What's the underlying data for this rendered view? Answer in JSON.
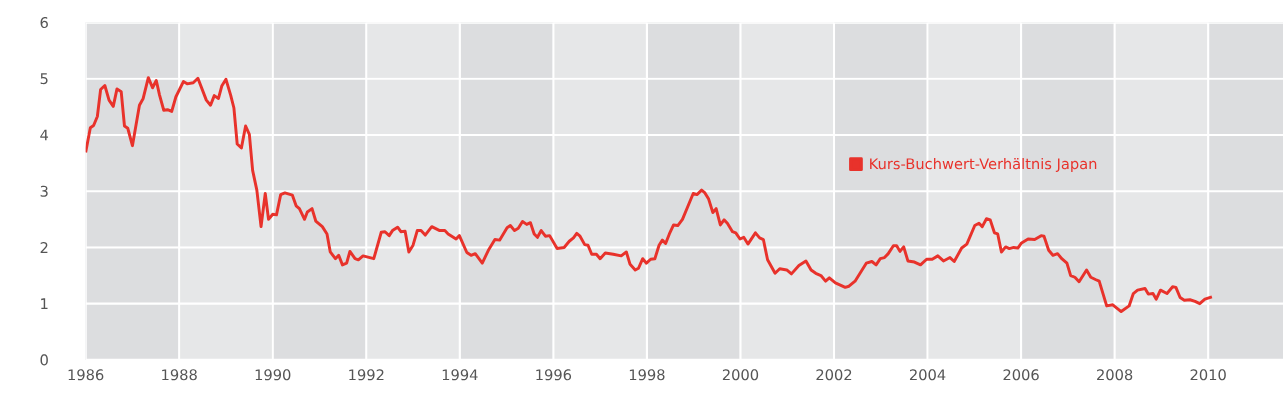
{
  "chart_data": {
    "type": "line",
    "x": [
      1986.0,
      1986.1,
      1986.17,
      1986.25,
      1986.32,
      1986.41,
      1986.5,
      1986.59,
      1986.67,
      1986.76,
      1986.83,
      1986.9,
      1987.0,
      1987.15,
      1987.23,
      1987.34,
      1987.43,
      1987.51,
      1987.58,
      1987.67,
      1987.75,
      1987.84,
      1987.93,
      1988.09,
      1988.17,
      1988.3,
      1988.4,
      1988.58,
      1988.67,
      1988.75,
      1988.84,
      1988.91,
      1989.0,
      1989.1,
      1989.17,
      1989.24,
      1989.33,
      1989.42,
      1989.5,
      1989.57,
      1989.66,
      1989.75,
      1989.84,
      1989.91,
      1990.0,
      1990.08,
      1990.17,
      1990.26,
      1990.42,
      1990.5,
      1990.57,
      1990.68,
      1990.74,
      1990.84,
      1990.92,
      1991.06,
      1991.16,
      1991.23,
      1991.34,
      1991.41,
      1991.49,
      1991.58,
      1991.65,
      1991.76,
      1991.83,
      1991.93,
      1992.16,
      1992.32,
      1992.4,
      1992.49,
      1992.56,
      1992.67,
      1992.74,
      1992.83,
      1992.91,
      1993.0,
      1993.09,
      1993.17,
      1993.26,
      1993.4,
      1993.57,
      1993.68,
      1993.75,
      1993.92,
      1993.99,
      1994.15,
      1994.24,
      1994.33,
      1994.48,
      1994.61,
      1994.75,
      1994.85,
      1995.01,
      1995.08,
      1995.17,
      1995.25,
      1995.34,
      1995.43,
      1995.51,
      1995.59,
      1995.66,
      1995.74,
      1995.83,
      1995.92,
      1996.08,
      1996.23,
      1996.34,
      1996.43,
      1996.5,
      1996.57,
      1996.67,
      1996.74,
      1996.82,
      1996.92,
      1997.0,
      1997.11,
      1997.28,
      1997.45,
      1997.56,
      1997.64,
      1997.75,
      1997.82,
      1997.91,
      1997.99,
      1998.08,
      1998.17,
      1998.26,
      1998.33,
      1998.4,
      1998.48,
      1998.57,
      1998.66,
      1998.76,
      1998.87,
      1998.99,
      1999.07,
      1999.17,
      1999.24,
      1999.32,
      1999.41,
      1999.48,
      1999.57,
      1999.65,
      1999.72,
      1999.83,
      1999.9,
      1999.99,
      2000.07,
      2000.16,
      2000.32,
      2000.41,
      2000.49,
      2000.58,
      2000.74,
      2000.84,
      2000.99,
      2001.09,
      2001.25,
      2001.4,
      2001.51,
      2001.61,
      2001.72,
      2001.82,
      2001.9,
      2002.03,
      2002.24,
      2002.32,
      2002.45,
      2002.69,
      2002.81,
      2002.9,
      2002.99,
      2003.08,
      2003.16,
      2003.27,
      2003.34,
      2003.41,
      2003.49,
      2003.58,
      2003.72,
      2003.85,
      2003.98,
      2004.1,
      2004.22,
      2004.34,
      2004.48,
      2004.57,
      2004.73,
      2004.84,
      2005.01,
      2005.1,
      2005.17,
      2005.26,
      2005.34,
      2005.43,
      2005.5,
      2005.58,
      2005.67,
      2005.75,
      2005.84,
      2005.93,
      2006.01,
      2006.15,
      2006.29,
      2006.43,
      2006.49,
      2006.59,
      2006.68,
      2006.78,
      2006.87,
      2006.98,
      2007.06,
      2007.15,
      2007.24,
      2007.4,
      2007.49,
      2007.59,
      2007.67,
      2007.83,
      2007.96,
      2008.14,
      2008.31,
      2008.4,
      2008.49,
      2008.65,
      2008.72,
      2008.82,
      2008.89,
      2008.98,
      2009.12,
      2009.24,
      2009.31,
      2009.4,
      2009.49,
      2009.61,
      2009.72,
      2009.82,
      2009.93,
      2010.08
    ],
    "series": [
      {
        "name": "Kurs-Buchwert-Verhältnis Japan",
        "color": "#e8322b",
        "values": [
          3.69,
          4.13,
          4.17,
          4.33,
          4.81,
          4.88,
          4.62,
          4.51,
          4.82,
          4.77,
          4.16,
          4.12,
          3.81,
          4.53,
          4.65,
          5.02,
          4.84,
          4.97,
          4.71,
          4.44,
          4.45,
          4.42,
          4.68,
          4.95,
          4.91,
          4.93,
          5.01,
          4.62,
          4.53,
          4.7,
          4.65,
          4.87,
          4.99,
          4.71,
          4.48,
          3.84,
          3.77,
          4.16,
          4.01,
          3.37,
          3.02,
          2.37,
          2.96,
          2.5,
          2.59,
          2.58,
          2.94,
          2.97,
          2.93,
          2.74,
          2.69,
          2.5,
          2.63,
          2.69,
          2.47,
          2.37,
          2.24,
          1.92,
          1.8,
          1.86,
          1.69,
          1.72,
          1.93,
          1.8,
          1.78,
          1.85,
          1.8,
          2.27,
          2.28,
          2.21,
          2.3,
          2.36,
          2.28,
          2.29,
          1.92,
          2.04,
          2.3,
          2.3,
          2.22,
          2.37,
          2.3,
          2.3,
          2.24,
          2.15,
          2.21,
          1.91,
          1.86,
          1.89,
          1.72,
          1.95,
          2.14,
          2.13,
          2.35,
          2.39,
          2.3,
          2.34,
          2.46,
          2.41,
          2.44,
          2.24,
          2.18,
          2.3,
          2.2,
          2.21,
          1.98,
          2.0,
          2.11,
          2.17,
          2.25,
          2.2,
          2.05,
          2.04,
          1.88,
          1.88,
          1.8,
          1.9,
          1.88,
          1.85,
          1.92,
          1.7,
          1.6,
          1.63,
          1.8,
          1.72,
          1.79,
          1.8,
          2.04,
          2.13,
          2.07,
          2.24,
          2.4,
          2.39,
          2.5,
          2.72,
          2.96,
          2.94,
          3.02,
          2.97,
          2.86,
          2.62,
          2.69,
          2.4,
          2.49,
          2.43,
          2.28,
          2.26,
          2.15,
          2.18,
          2.06,
          2.26,
          2.17,
          2.14,
          1.78,
          1.54,
          1.62,
          1.6,
          1.53,
          1.68,
          1.76,
          1.6,
          1.54,
          1.5,
          1.4,
          1.46,
          1.37,
          1.29,
          1.31,
          1.4,
          1.72,
          1.75,
          1.69,
          1.8,
          1.82,
          1.89,
          2.03,
          2.03,
          1.93,
          2.01,
          1.76,
          1.74,
          1.69,
          1.79,
          1.79,
          1.85,
          1.76,
          1.82,
          1.75,
          1.99,
          2.06,
          2.39,
          2.43,
          2.37,
          2.51,
          2.49,
          2.26,
          2.24,
          1.92,
          2.01,
          1.98,
          2.0,
          1.99,
          2.08,
          2.15,
          2.14,
          2.21,
          2.2,
          1.95,
          1.86,
          1.89,
          1.8,
          1.72,
          1.5,
          1.47,
          1.39,
          1.6,
          1.47,
          1.43,
          1.4,
          0.96,
          0.98,
          0.86,
          0.96,
          1.18,
          1.24,
          1.27,
          1.17,
          1.18,
          1.08,
          1.24,
          1.18,
          1.3,
          1.29,
          1.11,
          1.06,
          1.07,
          1.04,
          1.0,
          1.08,
          1.12
        ]
      }
    ],
    "xlim": [
      1986,
      2011.6
    ],
    "ylim": [
      0,
      6
    ],
    "xticks": [
      1986,
      1988,
      1990,
      1992,
      1994,
      1996,
      1998,
      2000,
      2002,
      2004,
      2006,
      2008,
      2010
    ],
    "yticks": [
      0,
      1,
      2,
      3,
      4,
      5,
      6
    ],
    "grid": true,
    "legend": "right",
    "bands": [
      {
        "axis": "x",
        "from": 1986,
        "to": 1988,
        "color": "#dcdddf"
      },
      {
        "axis": "x",
        "from": 1990,
        "to": 1992,
        "color": "#dcdddf"
      },
      {
        "axis": "x",
        "from": 1994,
        "to": 1996,
        "color": "#dcdddf"
      },
      {
        "axis": "x",
        "from": 1998,
        "to": 2000,
        "color": "#dcdddf"
      },
      {
        "axis": "x",
        "from": 2002,
        "to": 2004,
        "color": "#dcdddf"
      },
      {
        "axis": "x",
        "from": 2006,
        "to": 2008,
        "color": "#dcdddf"
      },
      {
        "axis": "x",
        "from": 2010,
        "to": 2011.6,
        "color": "#dcdddf"
      }
    ]
  }
}
